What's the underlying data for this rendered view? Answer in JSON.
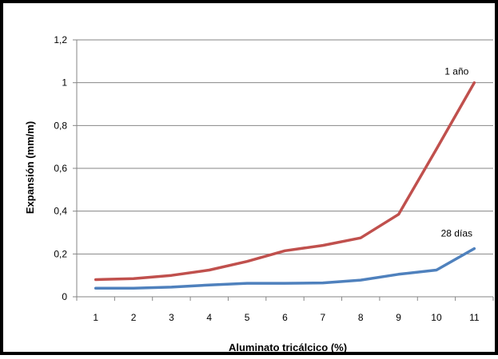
{
  "chart_data": {
    "type": "line",
    "title": "",
    "xlabel": "Aluminato tricálcico (%)",
    "ylabel": "Expansión (mm/m)",
    "categories": [
      "1",
      "2",
      "3",
      "4",
      "5",
      "6",
      "7",
      "8",
      "9",
      "10",
      "11"
    ],
    "x": [
      1,
      2,
      3,
      4,
      5,
      6,
      7,
      8,
      9,
      10,
      11
    ],
    "ylim": [
      0,
      1.2
    ],
    "yticks": [
      "0",
      "0,2",
      "0,4",
      "0,6",
      "0,8",
      "1",
      "1,2"
    ],
    "grid": true,
    "legend": "none",
    "series": [
      {
        "name": "1 año",
        "color": "#c0504d",
        "values": [
          0.08,
          0.085,
          0.1,
          0.125,
          0.165,
          0.215,
          0.24,
          0.275,
          0.385,
          0.69,
          1.0
        ]
      },
      {
        "name": "28 días",
        "color": "#4f81bd",
        "values": [
          0.04,
          0.04,
          0.045,
          0.055,
          0.063,
          0.063,
          0.065,
          0.078,
          0.105,
          0.125,
          0.225
        ]
      }
    ]
  }
}
